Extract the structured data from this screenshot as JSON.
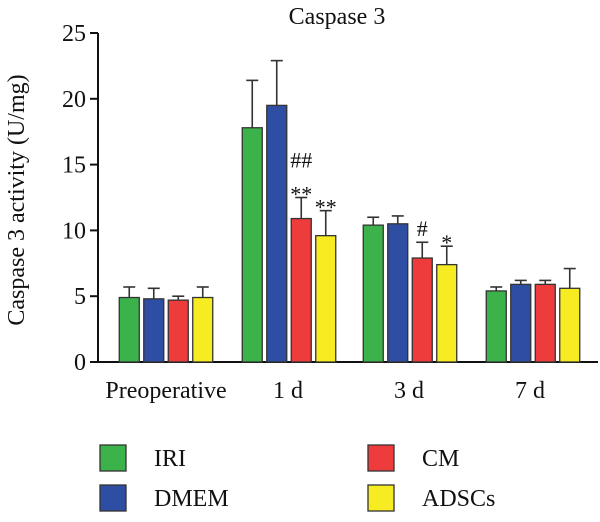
{
  "chart_data": {
    "type": "bar",
    "title": "Caspase 3",
    "xlabel": "",
    "ylabel": "Caspase 3 activity (U/mg)",
    "ylim": [
      0,
      25
    ],
    "yticks": [
      0,
      5,
      10,
      15,
      20,
      25
    ],
    "grid": false,
    "legend_position": "bottom",
    "categories": [
      "Preoperative",
      "1 d",
      "3 d",
      "7 d"
    ],
    "series": [
      {
        "name": "IRI",
        "color": "#3cb34a",
        "values": [
          4.9,
          17.8,
          10.4,
          5.4
        ],
        "errors": [
          0.8,
          3.6,
          0.6,
          0.3
        ]
      },
      {
        "name": "DMEM",
        "color": "#2e4ea3",
        "values": [
          4.8,
          19.5,
          10.5,
          5.9
        ],
        "errors": [
          0.8,
          3.4,
          0.6,
          0.3
        ]
      },
      {
        "name": "CM",
        "color": "#ee3b3b",
        "values": [
          4.7,
          10.9,
          7.9,
          5.9
        ],
        "errors": [
          0.3,
          1.6,
          1.2,
          0.3
        ]
      },
      {
        "name": "ADSCs",
        "color": "#f7ec21",
        "values": [
          4.9,
          9.6,
          7.4,
          5.6
        ],
        "errors": [
          0.8,
          1.9,
          1.4,
          1.5
        ]
      }
    ],
    "annotations": [
      {
        "category": 1,
        "series": 2,
        "lines": [
          "##",
          "**"
        ]
      },
      {
        "category": 1,
        "series": 3,
        "lines": [
          "**"
        ]
      },
      {
        "category": 2,
        "series": 2,
        "lines": [
          "#"
        ]
      },
      {
        "category": 2,
        "series": 3,
        "lines": [
          "*"
        ]
      }
    ]
  }
}
